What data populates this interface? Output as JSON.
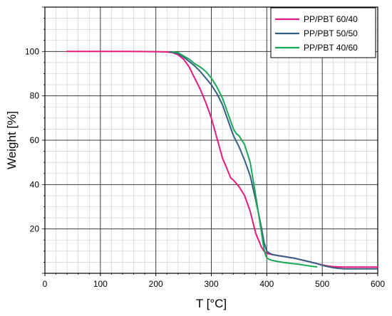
{
  "chart_data": {
    "type": "line",
    "title": "",
    "xlabel": "T [°C]",
    "ylabel": "Weight [%]",
    "xlim": [
      0,
      600
    ],
    "ylim": [
      0,
      120
    ],
    "x_ticks": [
      0,
      100,
      200,
      300,
      400,
      500,
      600
    ],
    "y_ticks": [
      20,
      40,
      60,
      80,
      100
    ],
    "grid": true,
    "legend_position": "top-right",
    "series": [
      {
        "name": "PP/PBT 60/40",
        "color": "#e8197d",
        "x": [
          40,
          100,
          150,
          200,
          220,
          230,
          240,
          250,
          260,
          270,
          280,
          290,
          300,
          310,
          320,
          330,
          335,
          340,
          350,
          360,
          370,
          380,
          390,
          395,
          400,
          405,
          410,
          420,
          430,
          440,
          450,
          460,
          470,
          480,
          490,
          500,
          510,
          520,
          530,
          540,
          550,
          560,
          570,
          580,
          590,
          600
        ],
        "y": [
          100,
          100,
          100,
          99.9,
          99.8,
          99.5,
          98.5,
          96.5,
          93,
          88,
          83,
          77,
          70,
          61,
          52,
          46,
          43,
          42,
          39,
          35,
          28,
          18,
          12,
          10,
          9,
          8.7,
          8.4,
          8,
          7.6,
          7.2,
          6.8,
          6.2,
          5.6,
          5,
          4.4,
          3.8,
          3.3,
          3,
          2.9,
          2.8,
          2.8,
          2.8,
          2.8,
          2.8,
          2.8,
          2.8
        ]
      },
      {
        "name": "PP/PBT 50/50",
        "color": "#355e85",
        "x": [
          225,
          230,
          240,
          250,
          260,
          270,
          280,
          290,
          300,
          310,
          320,
          330,
          340,
          350,
          360,
          370,
          380,
          390,
          395,
          400,
          405,
          410,
          420,
          430,
          440,
          450,
          460,
          470,
          480,
          490,
          500,
          510,
          520,
          530,
          540,
          550,
          560,
          570,
          580,
          590,
          600
        ],
        "y": [
          99.8,
          99.7,
          99,
          97.5,
          95.5,
          93.5,
          91,
          88,
          85,
          81,
          76,
          69,
          62,
          57,
          51,
          44,
          33,
          21,
          14,
          10,
          9,
          8.5,
          8,
          7.6,
          7.2,
          6.8,
          6.2,
          5.6,
          5,
          4.4,
          3.6,
          3,
          2.5,
          2.2,
          2,
          2,
          2,
          2,
          2,
          2,
          2
        ]
      },
      {
        "name": "PP/PBT 40/60",
        "color": "#19a857",
        "x": [
          230,
          240,
          250,
          260,
          270,
          280,
          290,
          300,
          310,
          320,
          330,
          340,
          345,
          350,
          360,
          370,
          380,
          385,
          390,
          395,
          398,
          400,
          405,
          410,
          420,
          430,
          440,
          450,
          460,
          470,
          480,
          490
        ],
        "y": [
          99.8,
          99.5,
          98,
          96.5,
          94.5,
          93,
          91,
          88,
          84,
          79,
          72,
          65,
          63,
          62,
          58,
          50,
          35,
          27,
          19,
          11,
          8,
          7,
          6.2,
          5.8,
          5.3,
          4.9,
          4.6,
          4.3,
          4,
          3.6,
          3.2,
          2.9
        ]
      }
    ]
  }
}
